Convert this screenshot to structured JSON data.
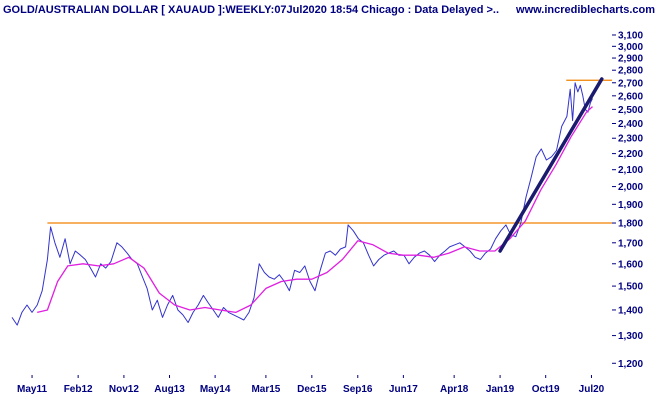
{
  "header": {
    "title": "GOLD/AUSTRALIAN DOLLAR [ XAUAUD ]:WEEKLY:07Jul2020 18:54 Chicago : Data Delayed >..",
    "website": "www.incrediblecharts.com"
  },
  "colors": {
    "background": "#ffffff",
    "price": "#3333cc",
    "moving_average": "#e020e0",
    "horizontal_levels": "#f08000",
    "trendline": "#1a1a6e",
    "labels": "#000080"
  },
  "chart_data": {
    "type": "line",
    "title": "GOLD/AUSTRALIAN DOLLAR [ XAUAUD ]:WEEKLY:07Jul2020 18:54 Chicago : Data Delayed >..",
    "xlabel": "",
    "ylabel": "",
    "y_scale": "log",
    "ylim": [
      1160,
      3200
    ],
    "y_ticks": [
      1200,
      1300,
      1400,
      1500,
      1600,
      1700,
      1800,
      1900,
      2000,
      2100,
      2200,
      2300,
      2400,
      2500,
      2600,
      2700,
      2800,
      2900,
      3000,
      3100
    ],
    "y_tick_labels": [
      "1,200",
      "1,300",
      "1,400",
      "1,500",
      "1,600",
      "1,700",
      "1,800",
      "1,900",
      "2,000",
      "2,100",
      "2,200",
      "2,300",
      "2,400",
      "2,500",
      "2,600",
      "2,700",
      "2,800",
      "2,900",
      "3,000",
      "3,100"
    ],
    "x_range": [
      "2011-01-01",
      "2020-11-01"
    ],
    "x_ticks": [
      {
        "label": "May11",
        "date": "2011-05-01"
      },
      {
        "label": "Feb12",
        "date": "2012-02-01"
      },
      {
        "label": "Nov12",
        "date": "2012-11-01"
      },
      {
        "label": "Aug13",
        "date": "2013-08-01"
      },
      {
        "label": "May14",
        "date": "2014-05-01"
      },
      {
        "label": "Mar15",
        "date": "2015-03-01"
      },
      {
        "label": "Dec15",
        "date": "2015-12-01"
      },
      {
        "label": "Sep16",
        "date": "2016-09-01"
      },
      {
        "label": "Jun17",
        "date": "2017-06-01"
      },
      {
        "label": "Apr18",
        "date": "2018-04-01"
      },
      {
        "label": "Jan19",
        "date": "2019-01-01"
      },
      {
        "label": "Oct19",
        "date": "2019-10-01"
      },
      {
        "label": "Jul20",
        "date": "2020-07-01"
      }
    ],
    "grid": false,
    "legend": "none",
    "series": [
      {
        "key": "price",
        "style": "line",
        "points": [
          [
            "2011-01-01",
            1370
          ],
          [
            "2011-02-01",
            1340
          ],
          [
            "2011-03-01",
            1390
          ],
          [
            "2011-04-01",
            1420
          ],
          [
            "2011-05-01",
            1390
          ],
          [
            "2011-06-01",
            1420
          ],
          [
            "2011-07-01",
            1480
          ],
          [
            "2011-08-01",
            1620
          ],
          [
            "2011-08-20",
            1780
          ],
          [
            "2011-09-15",
            1700
          ],
          [
            "2011-10-15",
            1630
          ],
          [
            "2011-11-15",
            1720
          ],
          [
            "2011-12-15",
            1600
          ],
          [
            "2012-01-15",
            1660
          ],
          [
            "2012-02-15",
            1640
          ],
          [
            "2012-03-15",
            1620
          ],
          [
            "2012-04-15",
            1580
          ],
          [
            "2012-05-15",
            1540
          ],
          [
            "2012-06-15",
            1600
          ],
          [
            "2012-07-15",
            1580
          ],
          [
            "2012-08-15",
            1610
          ],
          [
            "2012-09-20",
            1700
          ],
          [
            "2012-10-20",
            1680
          ],
          [
            "2012-11-20",
            1650
          ],
          [
            "2012-12-20",
            1620
          ],
          [
            "2013-01-20",
            1600
          ],
          [
            "2013-02-20",
            1540
          ],
          [
            "2013-03-20",
            1490
          ],
          [
            "2013-04-20",
            1400
          ],
          [
            "2013-05-20",
            1440
          ],
          [
            "2013-06-20",
            1370
          ],
          [
            "2013-07-20",
            1420
          ],
          [
            "2013-08-20",
            1460
          ],
          [
            "2013-09-20",
            1400
          ],
          [
            "2013-10-20",
            1380
          ],
          [
            "2013-11-20",
            1350
          ],
          [
            "2013-12-20",
            1390
          ],
          [
            "2014-01-20",
            1420
          ],
          [
            "2014-02-20",
            1460
          ],
          [
            "2014-03-20",
            1430
          ],
          [
            "2014-04-20",
            1400
          ],
          [
            "2014-05-20",
            1370
          ],
          [
            "2014-06-20",
            1410
          ],
          [
            "2014-07-20",
            1390
          ],
          [
            "2014-08-20",
            1380
          ],
          [
            "2014-09-20",
            1370
          ],
          [
            "2014-10-20",
            1360
          ],
          [
            "2014-11-20",
            1390
          ],
          [
            "2014-12-20",
            1450
          ],
          [
            "2015-01-20",
            1600
          ],
          [
            "2015-02-20",
            1560
          ],
          [
            "2015-03-20",
            1540
          ],
          [
            "2015-04-20",
            1530
          ],
          [
            "2015-05-20",
            1550
          ],
          [
            "2015-06-20",
            1520
          ],
          [
            "2015-07-20",
            1480
          ],
          [
            "2015-08-20",
            1570
          ],
          [
            "2015-09-20",
            1560
          ],
          [
            "2015-10-20",
            1590
          ],
          [
            "2015-11-20",
            1520
          ],
          [
            "2015-12-20",
            1480
          ],
          [
            "2016-01-20",
            1570
          ],
          [
            "2016-02-20",
            1650
          ],
          [
            "2016-03-20",
            1660
          ],
          [
            "2016-04-20",
            1640
          ],
          [
            "2016-05-20",
            1670
          ],
          [
            "2016-06-20",
            1680
          ],
          [
            "2016-07-05",
            1790
          ],
          [
            "2016-08-05",
            1760
          ],
          [
            "2016-09-05",
            1720
          ],
          [
            "2016-10-05",
            1700
          ],
          [
            "2016-11-05",
            1640
          ],
          [
            "2016-12-05",
            1590
          ],
          [
            "2017-01-05",
            1620
          ],
          [
            "2017-02-05",
            1640
          ],
          [
            "2017-03-05",
            1650
          ],
          [
            "2017-04-05",
            1660
          ],
          [
            "2017-05-05",
            1640
          ],
          [
            "2017-06-05",
            1640
          ],
          [
            "2017-07-05",
            1600
          ],
          [
            "2017-08-05",
            1630
          ],
          [
            "2017-09-05",
            1650
          ],
          [
            "2017-10-05",
            1660
          ],
          [
            "2017-11-05",
            1640
          ],
          [
            "2017-12-05",
            1610
          ],
          [
            "2018-01-05",
            1640
          ],
          [
            "2018-02-05",
            1660
          ],
          [
            "2018-03-05",
            1680
          ],
          [
            "2018-04-05",
            1690
          ],
          [
            "2018-05-05",
            1700
          ],
          [
            "2018-06-05",
            1680
          ],
          [
            "2018-07-05",
            1660
          ],
          [
            "2018-08-05",
            1630
          ],
          [
            "2018-09-05",
            1620
          ],
          [
            "2018-10-05",
            1650
          ],
          [
            "2018-11-05",
            1670
          ],
          [
            "2018-12-05",
            1720
          ],
          [
            "2019-01-05",
            1760
          ],
          [
            "2019-02-05",
            1790
          ],
          [
            "2019-03-05",
            1740
          ],
          [
            "2019-04-05",
            1730
          ],
          [
            "2019-05-05",
            1800
          ],
          [
            "2019-06-05",
            1940
          ],
          [
            "2019-07-05",
            2050
          ],
          [
            "2019-08-05",
            2180
          ],
          [
            "2019-09-05",
            2230
          ],
          [
            "2019-10-05",
            2160
          ],
          [
            "2019-11-05",
            2180
          ],
          [
            "2019-12-05",
            2220
          ],
          [
            "2020-01-05",
            2380
          ],
          [
            "2020-02-05",
            2450
          ],
          [
            "2020-02-25",
            2650
          ],
          [
            "2020-03-10",
            2420
          ],
          [
            "2020-03-25",
            2700
          ],
          [
            "2020-04-10",
            2630
          ],
          [
            "2020-04-25",
            2680
          ],
          [
            "2020-05-10",
            2600
          ],
          [
            "2020-05-25",
            2500
          ],
          [
            "2020-06-10",
            2480
          ],
          [
            "2020-06-25",
            2550
          ],
          [
            "2020-07-07",
            2580
          ]
        ]
      },
      {
        "key": "moving_average",
        "style": "line",
        "points": [
          [
            "2011-06-01",
            1390
          ],
          [
            "2011-08-01",
            1400
          ],
          [
            "2011-10-01",
            1520
          ],
          [
            "2011-12-01",
            1590
          ],
          [
            "2012-03-01",
            1600
          ],
          [
            "2012-06-01",
            1590
          ],
          [
            "2012-09-01",
            1600
          ],
          [
            "2012-12-01",
            1630
          ],
          [
            "2013-03-01",
            1580
          ],
          [
            "2013-06-01",
            1470
          ],
          [
            "2013-09-01",
            1420
          ],
          [
            "2013-12-01",
            1400
          ],
          [
            "2014-03-01",
            1410
          ],
          [
            "2014-06-01",
            1400
          ],
          [
            "2014-09-01",
            1390
          ],
          [
            "2014-12-01",
            1420
          ],
          [
            "2015-03-01",
            1490
          ],
          [
            "2015-06-01",
            1520
          ],
          [
            "2015-09-01",
            1530
          ],
          [
            "2015-12-01",
            1530
          ],
          [
            "2016-03-01",
            1560
          ],
          [
            "2016-06-01",
            1620
          ],
          [
            "2016-09-01",
            1710
          ],
          [
            "2016-12-01",
            1690
          ],
          [
            "2017-03-01",
            1650
          ],
          [
            "2017-06-01",
            1640
          ],
          [
            "2017-09-01",
            1640
          ],
          [
            "2017-12-01",
            1630
          ],
          [
            "2018-03-01",
            1650
          ],
          [
            "2018-06-01",
            1680
          ],
          [
            "2018-09-01",
            1660
          ],
          [
            "2018-12-01",
            1660
          ],
          [
            "2019-03-01",
            1720
          ],
          [
            "2019-06-01",
            1810
          ],
          [
            "2019-09-01",
            1980
          ],
          [
            "2019-12-01",
            2130
          ],
          [
            "2020-03-01",
            2310
          ],
          [
            "2020-06-01",
            2480
          ],
          [
            "2020-07-07",
            2520
          ]
        ]
      }
    ],
    "annotations": [
      {
        "key": "support-resistance-line",
        "type": "hline",
        "y": 1800,
        "x_start": "2011-08-01",
        "x_end": "2020-11-01"
      },
      {
        "key": "recent-high-line",
        "type": "hline",
        "y": 2720,
        "x_start": "2020-02-01",
        "x_end": "2020-11-01"
      },
      {
        "key": "trendline",
        "type": "segment",
        "points": [
          [
            "2019-01-01",
            1660
          ],
          [
            "2020-09-01",
            2730
          ]
        ]
      }
    ]
  }
}
